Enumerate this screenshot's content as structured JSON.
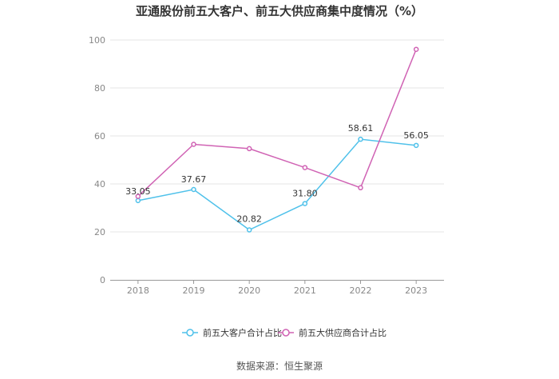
{
  "chart_data": {
    "type": "line",
    "title": "亚通股份前五大客户、前五大供应商集中度情况（%）",
    "categories": [
      "2018",
      "2019",
      "2020",
      "2021",
      "2022",
      "2023"
    ],
    "ylim": [
      0,
      100
    ],
    "yticks": [
      "0",
      "20",
      "40",
      "60",
      "80",
      "100"
    ],
    "grid": true,
    "legend": "bottom",
    "series": [
      {
        "name": "前五大客户合计占比",
        "color": "#4fc1ea",
        "values": [
          33.05,
          37.67,
          20.82,
          31.8,
          58.61,
          56.05
        ],
        "labels": [
          "33.05",
          "37.67",
          "20.82",
          "31.80",
          "58.61",
          "56.05"
        ]
      },
      {
        "name": "前五大供应商合计占比",
        "color": "#d063b4",
        "values": [
          34.8,
          56.5,
          54.7,
          46.8,
          38.4,
          96.1
        ],
        "labels": []
      }
    ],
    "source": "数据来源：恒生聚源"
  }
}
